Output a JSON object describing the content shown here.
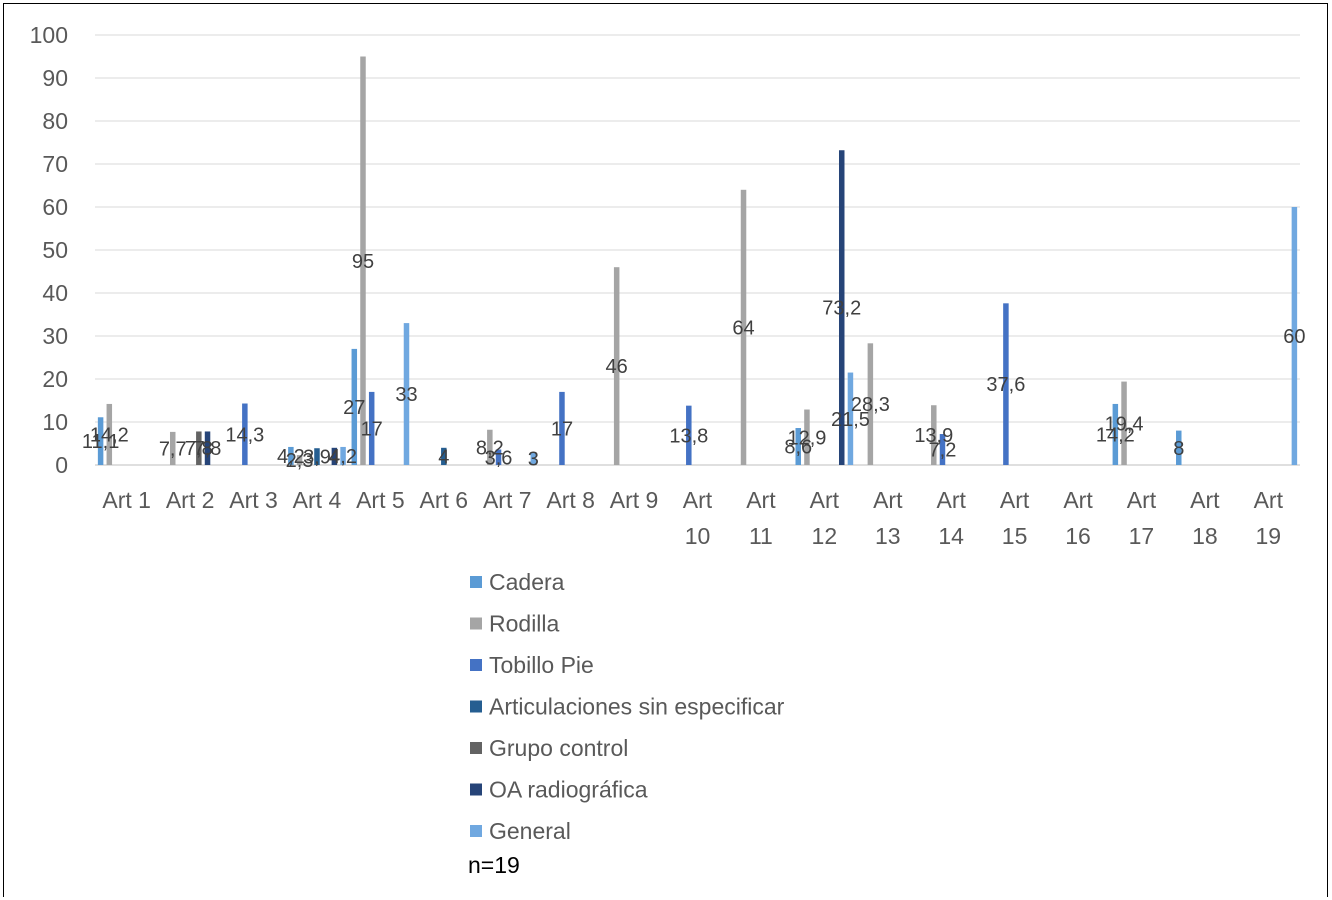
{
  "chart_data": {
    "type": "bar",
    "title": "",
    "xlabel": "",
    "ylabel": "",
    "ylim": [
      0,
      100
    ],
    "yticks": [
      0,
      10,
      20,
      30,
      40,
      50,
      60,
      70,
      80,
      90,
      100
    ],
    "grid": true,
    "legend_position": "bottom",
    "categories": [
      "Art 1",
      "Art 2",
      "Art 3",
      "Art 4",
      "Art 5",
      "Art 6",
      "Art 7",
      "Art 8",
      "Art 9",
      "Art 10",
      "Art 11",
      "Art 12",
      "Art 13",
      "Art 14",
      "Art 15",
      "Art 16",
      "Art 17",
      "Art 18",
      "Art 19"
    ],
    "series": [
      {
        "name": "Cadera",
        "color": "#5B9BD5",
        "values": [
          11.1,
          null,
          null,
          4.2,
          27,
          null,
          null,
          null,
          null,
          null,
          null,
          8.6,
          null,
          null,
          null,
          null,
          14.2,
          8,
          null
        ],
        "labels": [
          "11,1",
          "",
          "",
          "4,2",
          "27",
          "",
          "",
          "",
          "",
          "",
          "",
          "8,6",
          "",
          "",
          "",
          "",
          "14,2",
          "8",
          ""
        ]
      },
      {
        "name": "Rodilla",
        "color": "#A5A5A5",
        "values": [
          14.2,
          7.7,
          null,
          2.3,
          95,
          null,
          8.2,
          null,
          46,
          null,
          64,
          12.9,
          28.3,
          13.9,
          null,
          null,
          19.4,
          null,
          null
        ],
        "labels": [
          "14,2",
          "7,7",
          "",
          "2,3",
          "95",
          "",
          "8,2",
          "",
          "46",
          "",
          "64",
          "12,9",
          "28,3",
          "13,9",
          "",
          "",
          "19,4",
          "",
          ""
        ]
      },
      {
        "name": "Tobillo Pie",
        "color": "#4472C4",
        "values": [
          null,
          null,
          14.3,
          null,
          17,
          null,
          3.6,
          17,
          null,
          13.8,
          null,
          null,
          null,
          7.2,
          37.6,
          null,
          null,
          null,
          null
        ],
        "labels": [
          "",
          "",
          "14,3",
          "",
          "17",
          "",
          "3,6",
          "17",
          "",
          "13,8",
          "",
          "",
          "",
          "7,2",
          "37,6",
          "",
          "",
          "",
          ""
        ]
      },
      {
        "name": "Articulaciones sin especificar",
        "color": "#255E91",
        "values": [
          null,
          null,
          null,
          3.9,
          null,
          4,
          null,
          null,
          null,
          null,
          null,
          null,
          null,
          null,
          null,
          null,
          null,
          null,
          null
        ],
        "labels": [
          "",
          "",
          "",
          "3,9",
          "",
          "4",
          "",
          "",
          "",
          "",
          "",
          "",
          "",
          "",
          "",
          "",
          "",
          "",
          ""
        ]
      },
      {
        "name": "Grupo control",
        "color": "#636363",
        "values": [
          null,
          7.8,
          null,
          null,
          null,
          null,
          null,
          null,
          null,
          null,
          null,
          null,
          null,
          null,
          null,
          null,
          null,
          null,
          null
        ],
        "labels": [
          "",
          "7,8",
          "",
          "",
          "",
          "",
          "",
          "",
          "",
          "",
          "",
          "",
          "",
          "",
          "",
          "",
          "",
          "",
          ""
        ]
      },
      {
        "name": "OA radiográfica",
        "color": "#264478",
        "values": [
          null,
          7.8,
          null,
          4,
          null,
          null,
          null,
          null,
          null,
          null,
          null,
          73.2,
          null,
          null,
          null,
          null,
          null,
          null,
          null
        ],
        "labels": [
          "",
          "7,8",
          "",
          "4",
          "",
          "",
          "",
          "",
          "",
          "",
          "",
          "73,2",
          "",
          "",
          "",
          "",
          "",
          "",
          ""
        ]
      },
      {
        "name": "General",
        "color": "#70A8E0",
        "values": [
          null,
          null,
          null,
          4.2,
          33,
          null,
          3,
          null,
          null,
          null,
          null,
          21.5,
          null,
          null,
          null,
          null,
          null,
          null,
          60
        ],
        "labels": [
          "",
          "",
          "",
          "4,2",
          "33",
          "",
          "3",
          "",
          "",
          "",
          "",
          "21,5",
          "",
          "",
          "",
          "",
          "",
          "",
          "60"
        ]
      }
    ],
    "annotation": "n=19"
  }
}
